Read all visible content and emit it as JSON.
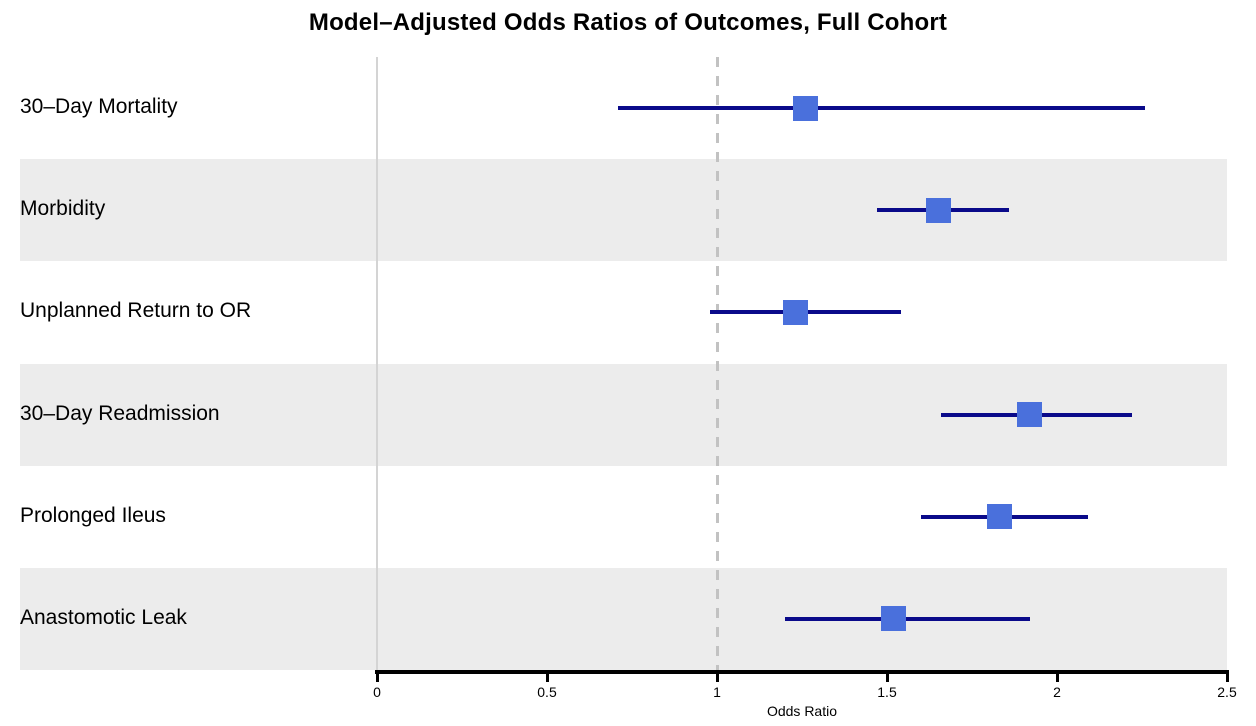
{
  "title": "Model–Adjusted Odds Ratios of Outcomes, Full Cohort",
  "colors": {
    "marker_fill": "#4A70DC",
    "ci_line": "#0A0A8A",
    "band_stripe": "#ECECEC",
    "zero_line": "#D4D4D4",
    "reference_line": "#C2C2C2",
    "axis": "#000000",
    "text": "#000000",
    "background": "#FFFFFF"
  },
  "chart_data": {
    "type": "scatter",
    "subtype": "forest-plot",
    "title": "Model–Adjusted Odds Ratios of Outcomes, Full Cohort",
    "xlabel": "Odds Ratio",
    "xlim": [
      0,
      2.5
    ],
    "xtick_values": [
      0,
      0.5,
      1,
      1.5,
      2,
      2.5
    ],
    "xtick_labels": [
      "0",
      "0.5",
      "1",
      "1.5",
      "2",
      "2.5"
    ],
    "reference_line_x": 1.0,
    "grid": false,
    "legend": false,
    "zebra_stripes": true,
    "categories": [
      "30–Day Mortality",
      "Morbidity",
      "Unplanned Return to OR",
      "30–Day Readmission",
      "Prolonged Ileus",
      "Anastomotic Leak"
    ],
    "series": [
      {
        "name": "Odds Ratio (point estimate)",
        "values": [
          1.26,
          1.65,
          1.23,
          1.92,
          1.83,
          1.52
        ]
      },
      {
        "name": "95% CI lower bound",
        "values": [
          0.71,
          1.47,
          0.98,
          1.66,
          1.6,
          1.2
        ]
      },
      {
        "name": "95% CI upper bound",
        "values": [
          2.26,
          1.86,
          1.54,
          2.22,
          2.09,
          1.92
        ]
      }
    ]
  }
}
